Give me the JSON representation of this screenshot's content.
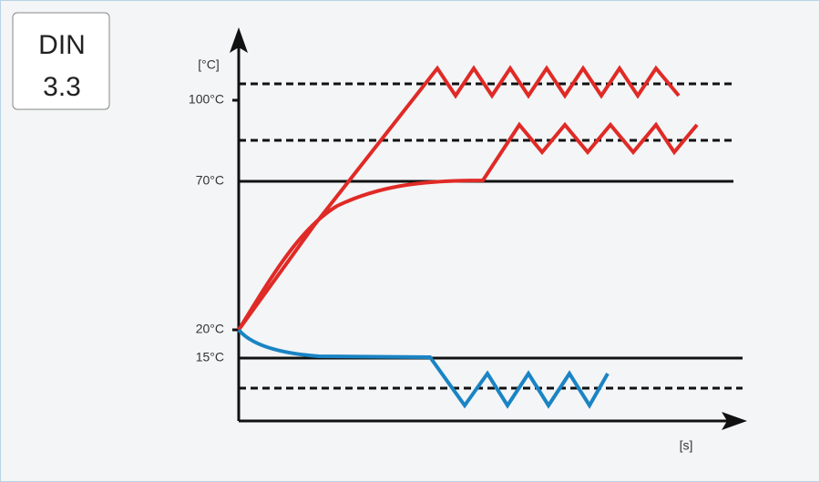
{
  "badge": {
    "lines": [
      "DIN",
      "3.3"
    ]
  },
  "y_axis": {
    "unit": "[°C]",
    "labels": [
      "100°C",
      "70°C",
      "20°C",
      "15°C"
    ]
  },
  "x_axis": {
    "unit": "[s]"
  }
}
